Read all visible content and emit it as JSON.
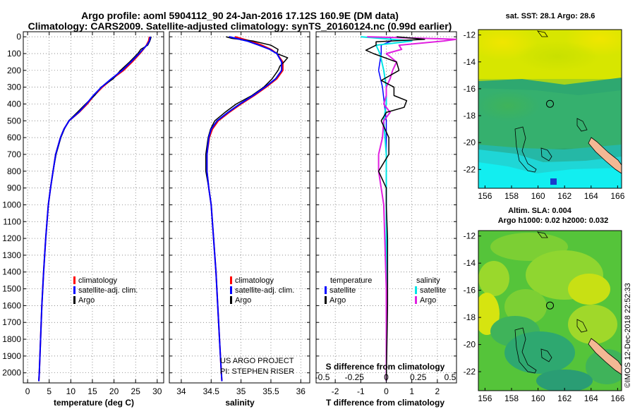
{
  "title_line1": "Argo profile: aoml 5904112_90 24-Jan-2016 17.12S 160.9E (DM data)",
  "title_line2": "Climatology: CARS2009. Satellite-adjusted climatology: synTS_20160124.nc (0.99d earlier)",
  "depth_ticks": [
    "0",
    "100",
    "200",
    "300",
    "400",
    "500",
    "600",
    "700",
    "800",
    "900",
    "1000",
    "1100",
    "1200",
    "1300",
    "1400",
    "1500",
    "1600",
    "1700",
    "1800",
    "1900",
    "2000"
  ],
  "colors": {
    "climatology": "#ff0000",
    "satellite": "#0000ff",
    "argo": "#000000",
    "sal_satellite": "#00e5e5",
    "sal_argo": "#e020e0",
    "land": "#f4b894"
  },
  "chart_data": [
    {
      "type": "line",
      "panel": "temperature",
      "xlabel": "temperature (deg C)",
      "ylabel": "",
      "xlim": [
        -1,
        31.5
      ],
      "ylim": [
        2060,
        -30
      ],
      "xticks": [
        0,
        5,
        10,
        15,
        20,
        25,
        30
      ],
      "yticks": [
        0,
        100,
        200,
        300,
        400,
        500,
        600,
        700,
        800,
        900,
        1000,
        1100,
        1200,
        1300,
        1400,
        1500,
        1600,
        1700,
        1800,
        1900,
        2000
      ],
      "legend": {
        "position": "bottom-right",
        "entries": [
          "climatology",
          "satellite-adj. clim.",
          "Argo"
        ]
      },
      "series": [
        {
          "name": "climatology",
          "color": "#ff0000",
          "depth": [
            0,
            25,
            50,
            75,
            100,
            150,
            200,
            250,
            300,
            350,
            400,
            450,
            500,
            550,
            600,
            700,
            800,
            900,
            1000,
            1200,
            1400,
            1600,
            1800,
            2000,
            2050
          ],
          "values": [
            28.2,
            28.0,
            27.5,
            26.8,
            26.0,
            24.2,
            22.2,
            19.6,
            17.3,
            15.4,
            13.8,
            11.9,
            9.6,
            8.4,
            7.6,
            6.5,
            5.9,
            5.3,
            4.8,
            4.2,
            3.7,
            3.3,
            3.0,
            2.7,
            2.6
          ]
        },
        {
          "name": "satellite-adj. clim.",
          "color": "#0000ff",
          "depth": [
            0,
            25,
            50,
            75,
            100,
            150,
            200,
            250,
            300,
            350,
            400,
            450,
            500,
            550,
            600,
            700,
            800,
            900,
            1000,
            1200,
            1400,
            1600,
            1800,
            2000,
            2050
          ],
          "values": [
            28.4,
            28.2,
            27.6,
            26.7,
            25.8,
            23.9,
            21.9,
            19.4,
            17.1,
            15.2,
            13.6,
            11.8,
            9.6,
            8.4,
            7.6,
            6.5,
            5.9,
            5.3,
            4.8,
            4.2,
            3.7,
            3.3,
            3.0,
            2.7,
            2.6
          ]
        },
        {
          "name": "Argo",
          "color": "#000000",
          "depth": [
            0,
            10,
            25,
            50,
            75,
            100,
            150,
            200,
            250,
            300,
            350,
            400,
            450,
            500,
            550,
            600,
            700,
            800,
            900,
            1000,
            1200,
            1400,
            1600,
            1800,
            2000,
            2050
          ],
          "values": [
            28.6,
            28.5,
            28.3,
            27.8,
            26.2,
            25.5,
            23.6,
            21.5,
            19.8,
            17.0,
            15.5,
            13.4,
            11.5,
            9.5,
            8.5,
            7.7,
            6.6,
            5.9,
            5.3,
            4.8,
            4.2,
            3.7,
            3.3,
            3.0,
            2.7,
            2.6
          ]
        }
      ]
    },
    {
      "type": "line",
      "panel": "salinity",
      "xlabel": "salinity",
      "ylabel": "",
      "xlim": [
        33.8,
        36.15
      ],
      "ylim": [
        2060,
        -30
      ],
      "xticks": [
        34,
        34.5,
        35,
        35.5,
        36
      ],
      "xticklabels": [
        "34",
        "34.5",
        "35",
        "35.5",
        "36"
      ],
      "legend": {
        "position": "bottom-right",
        "entries": [
          "climatology",
          "satellite-adj. clim.",
          "Argo"
        ]
      },
      "annotation": [
        "US ARGO PROJECT",
        "PI: STEPHEN RISER"
      ],
      "series": [
        {
          "name": "climatology",
          "color": "#ff0000",
          "depth": [
            0,
            25,
            50,
            75,
            100,
            150,
            200,
            250,
            300,
            350,
            400,
            450,
            500,
            550,
            600,
            700,
            800,
            900,
            1000,
            1200,
            1400,
            1600,
            1800,
            2000,
            2050
          ],
          "values": [
            34.9,
            35.15,
            35.35,
            35.5,
            35.6,
            35.7,
            35.7,
            35.6,
            35.42,
            35.22,
            35.0,
            34.8,
            34.62,
            34.52,
            34.47,
            34.43,
            34.43,
            34.46,
            34.5,
            34.54,
            34.58,
            34.61,
            34.64,
            34.67,
            34.68
          ]
        },
        {
          "name": "satellite-adj. clim.",
          "color": "#0000ff",
          "depth": [
            0,
            25,
            50,
            75,
            100,
            150,
            200,
            250,
            300,
            350,
            400,
            450,
            500,
            550,
            600,
            700,
            800,
            900,
            1000,
            1200,
            1400,
            1600,
            1800,
            2000,
            2050
          ],
          "values": [
            34.8,
            35.1,
            35.3,
            35.48,
            35.6,
            35.68,
            35.68,
            35.58,
            35.4,
            35.2,
            34.98,
            34.78,
            34.6,
            34.5,
            34.46,
            34.43,
            34.43,
            34.46,
            34.5,
            34.54,
            34.58,
            34.61,
            34.64,
            34.67,
            34.68
          ]
        },
        {
          "name": "Argo",
          "color": "#000000",
          "depth": [
            0,
            10,
            25,
            50,
            75,
            100,
            125,
            150,
            175,
            200,
            250,
            300,
            350,
            400,
            450,
            500,
            550,
            600,
            700,
            800,
            900,
            1000,
            1200,
            1400,
            1600,
            1800,
            2000,
            2050
          ],
          "values": [
            34.75,
            34.85,
            35.2,
            35.5,
            35.62,
            35.6,
            35.78,
            35.72,
            35.65,
            35.62,
            35.52,
            35.38,
            35.18,
            34.92,
            34.73,
            34.56,
            34.49,
            34.45,
            34.41,
            34.41,
            34.46,
            34.5,
            34.54,
            34.58,
            34.61,
            34.64,
            34.67,
            34.68
          ]
        }
      ]
    },
    {
      "type": "line",
      "panel": "difference",
      "xlabel": "T difference from climatology",
      "ylabel": "",
      "xlim": [
        -2.75,
        2.75
      ],
      "ylim": [
        2060,
        -30
      ],
      "xticks": [
        -2,
        -1,
        0,
        1,
        2
      ],
      "xticklabels": [
        "-2",
        "-1",
        "0",
        "1",
        "2"
      ],
      "secondary_axis": {
        "label": "S difference from climatology",
        "ticks": [
          -0.5,
          -0.25,
          0,
          0.25,
          0.5
        ],
        "ticklabels": [
          "-0.5",
          "-0.25",
          "0",
          "0.25",
          "0.5"
        ]
      },
      "legend": {
        "position": "bottom",
        "groups": [
          {
            "title": "temperature",
            "entries": [
              "satellite",
              "Argo"
            ]
          },
          {
            "title": "salinity",
            "entries": [
              "satellite",
              "Argo"
            ]
          }
        ]
      },
      "series": [
        {
          "name": "temperature satellite",
          "color": "#0000ff",
          "depth": [
            0,
            25,
            50,
            100,
            200,
            300,
            500,
            800,
            1200,
            2050
          ],
          "values": [
            0.15,
            0.2,
            -0.2,
            -0.2,
            -0.3,
            -0.15,
            0,
            0,
            0,
            0
          ]
        },
        {
          "name": "temperature Argo",
          "color": "#000000",
          "depth": [
            0,
            15,
            30,
            50,
            80,
            100,
            150,
            200,
            260,
            300,
            350,
            380,
            420,
            450,
            500,
            600,
            700,
            800,
            900,
            1000,
            1200,
            1600,
            2050
          ],
          "values": [
            0.4,
            1.5,
            -0.4,
            -0.4,
            -0.8,
            -0.5,
            0.4,
            0.5,
            -0.2,
            0.3,
            0.3,
            0.8,
            0.7,
            0.0,
            -0.2,
            0.1,
            0.1,
            -0.3,
            0.0,
            0.0,
            0.05,
            0.05,
            0.0
          ]
        },
        {
          "name": "salinity satellite",
          "color": "#00e5e5",
          "depth": [
            0,
            25,
            50,
            100,
            200,
            300,
            400,
            500,
            700,
            1000,
            2050
          ],
          "values": [
            -0.2,
            0.2,
            -0.08,
            -0.05,
            -0.02,
            0.0,
            0.0,
            -0.02,
            0.0,
            0.0,
            0.0
          ]
        },
        {
          "name": "salinity Argo",
          "color": "#e020e0",
          "depth": [
            0,
            15,
            25,
            50,
            75,
            100,
            150,
            200,
            250,
            300,
            350,
            400,
            450,
            500,
            600,
            700,
            800,
            1000,
            1500,
            2050
          ],
          "values": [
            -0.15,
            0.55,
            0.45,
            0.1,
            0.12,
            0.0,
            0.08,
            0.05,
            0.03,
            0.0,
            0.0,
            -0.02,
            0.03,
            -0.02,
            -0.03,
            -0.06,
            -0.06,
            -0.02,
            0.0,
            0.0
          ]
        }
      ]
    },
    {
      "type": "heatmap",
      "panel": "sst-map",
      "title": "sat. SST: 28.1 Argo: 28.6",
      "xticks": [
        156,
        158,
        160,
        162,
        164,
        166
      ],
      "yticks": [
        -12,
        -14,
        -16,
        -18,
        -20,
        -22
      ],
      "xlim": [
        155.5,
        166.3
      ],
      "ylim": [
        -23.4,
        -11.6
      ],
      "marker": {
        "lon": 160.9,
        "lat": -17.12
      }
    },
    {
      "type": "heatmap",
      "panel": "sla-map",
      "title": "Altim. SLA: 0.004",
      "subtitle": "Argo h1000: 0.02 h2000: 0.032",
      "xticks": [
        156,
        158,
        160,
        162,
        164,
        166
      ],
      "yticks": [
        -12,
        -14,
        -16,
        -18,
        -20,
        -22
      ],
      "xlim": [
        155.5,
        166.3
      ],
      "ylim": [
        -23.4,
        -11.6
      ],
      "marker": {
        "lon": 160.9,
        "lat": -17.12
      }
    }
  ],
  "credit": "©IMOS 12-Dec-2018 22:52:33"
}
